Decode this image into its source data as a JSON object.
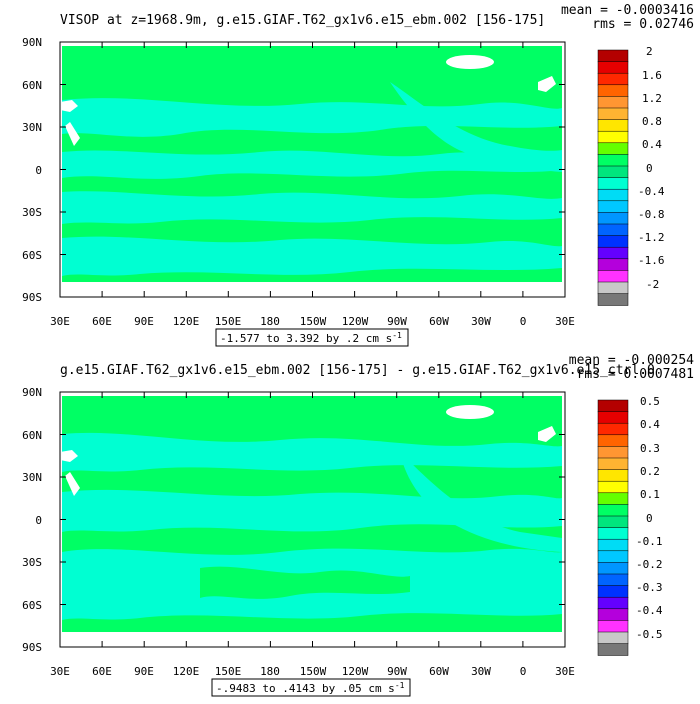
{
  "panels": [
    {
      "title": "VISOP at z=1968.9m, g.e15.GIAF.T62_gx1v6.e15_ebm.002 [156-175]",
      "stat_mean": "mean = -0.0003416",
      "stat_rms": "rms = 0.02746",
      "range_text": "-1.577 to 3.392 by .2 cm s",
      "range_sup": "-1",
      "colorbar_labels": [
        "2",
        "1.6",
        "1.2",
        "0.8",
        "0.4",
        "0",
        "-0.4",
        "-0.8",
        "-1.2",
        "-1.6",
        "-2"
      ],
      "colorbar_colors": [
        "#b40000",
        "#e60000",
        "#ff2800",
        "#ff6400",
        "#ff9632",
        "#ffb432",
        "#ffe600",
        "#ffff00",
        "#64ff00",
        "#00ff64",
        "#00e67d",
        "#00ffd2",
        "#00dcf5",
        "#00c8ff",
        "#0096ff",
        "#0064ff",
        "#0032ff",
        "#6400ff",
        "#b400dc",
        "#ff32ff",
        "#c8c8c8",
        "#787878"
      ]
    },
    {
      "title": "g.e15.GIAF.T62_gx1v6.e15_ebm.002 [156-175] - g.e15.GIAF.T62_gx1v6.e15_ctrl.0",
      "stat_mean": "mean = -0.000254",
      "stat_rms": "rms = 0.0007481",
      "range_text": "-.9483 to .4143 by .05 cm s",
      "range_sup": "-1",
      "colorbar_labels": [
        "0.5",
        "0.4",
        "0.3",
        "0.2",
        "0.1",
        "0",
        "-0.1",
        "-0.2",
        "-0.3",
        "-0.4",
        "-0.5"
      ],
      "colorbar_colors": [
        "#b40000",
        "#e60000",
        "#ff2800",
        "#ff6400",
        "#ff9632",
        "#ffb432",
        "#ffe600",
        "#ffff00",
        "#64ff00",
        "#00ff64",
        "#00e67d",
        "#00ffd2",
        "#00dcf5",
        "#00c8ff",
        "#0096ff",
        "#0064ff",
        "#0032ff",
        "#6400ff",
        "#b400dc",
        "#ff32ff",
        "#c8c8c8",
        "#787878"
      ]
    }
  ],
  "lat_labels": [
    "90N",
    "60N",
    "30N",
    "0",
    "30S",
    "60S",
    "90S"
  ],
  "lon_labels": [
    "30E",
    "60E",
    "90E",
    "120E",
    "150E",
    "180",
    "150W",
    "120W",
    "90W",
    "60W",
    "30W",
    "0",
    "30E"
  ],
  "fill_colors": {
    "ocean": "#00ff64",
    "band": "#00ffd2",
    "land": "#ffffff"
  }
}
